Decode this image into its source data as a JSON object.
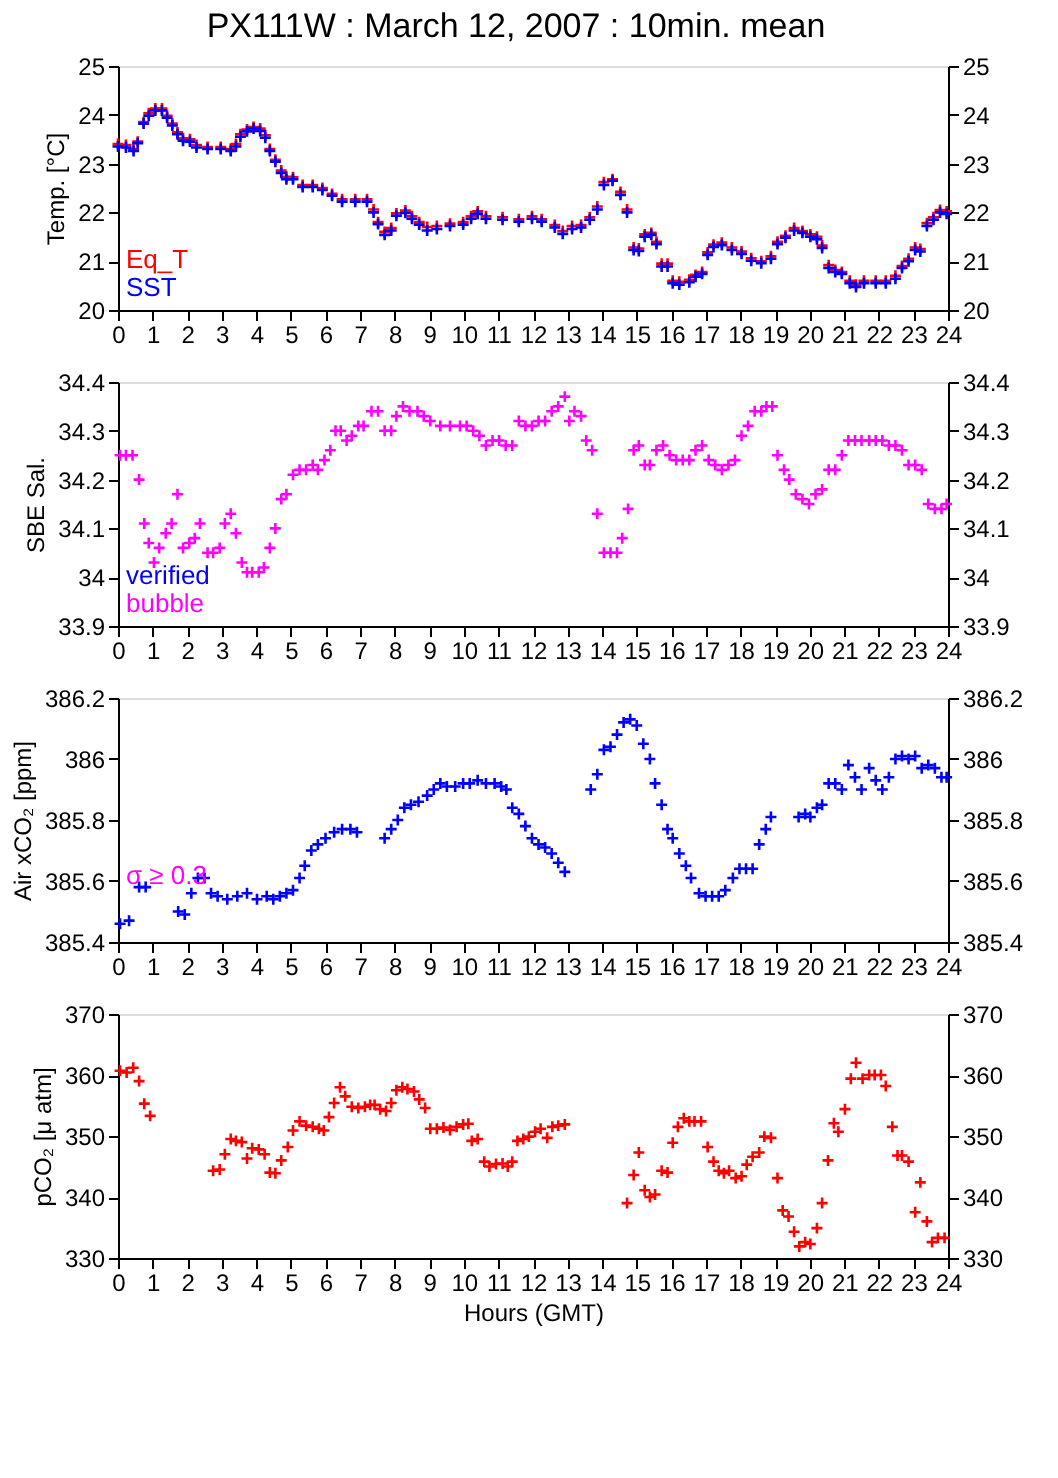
{
  "chart_data": [
    {
      "type": "scatter",
      "title": "PX111W : March 12, 2007 : 10min. mean",
      "ylabel": "Temp. [°C]",
      "xlim": [
        0,
        24
      ],
      "xticks": [
        0,
        1,
        2,
        3,
        4,
        5,
        6,
        7,
        8,
        9,
        10,
        11,
        12,
        13,
        14,
        15,
        16,
        17,
        18,
        19,
        20,
        21,
        22,
        23,
        24
      ],
      "ylim": [
        20,
        25
      ],
      "yticks": [
        20,
        21,
        22,
        23,
        24,
        25
      ],
      "y2lim": [
        20,
        25
      ],
      "y2ticks": [
        20,
        21,
        22,
        23,
        24,
        25
      ],
      "marker": "cross",
      "legend": "bottom left",
      "series": [
        {
          "name": "Eq_T",
          "color": "#ff0000",
          "x": [
            0,
            0.23,
            0.45,
            0.57,
            0.74,
            0.89,
            1.08,
            1.27,
            1.42,
            1.57,
            1.72,
            1.88,
            2.08,
            2.27,
            2.59,
            2.97,
            3.26,
            3.41,
            3.54,
            3.73,
            3.92,
            4.11,
            4.26,
            4.39,
            4.55,
            4.72,
            4.87,
            5.06,
            5.34,
            5.63,
            5.91,
            6.19,
            6.48,
            6.86,
            7.2,
            7.39,
            7.52,
            7.71,
            7.9,
            8.05,
            8.31,
            8.5,
            8.71,
            8.94,
            9.22,
            9.6,
            9.98,
            10.21,
            10.4,
            10.64,
            11.12,
            11.59,
            11.97,
            12.25,
            12.63,
            12.86,
            13.13,
            13.39,
            13.64,
            13.86,
            14.05,
            14.3,
            14.53,
            14.72,
            14.91,
            15.06,
            15.23,
            15.42,
            15.57,
            15.72,
            15.89,
            16.04,
            16.23,
            16.52,
            16.7,
            16.89,
            17.05,
            17.22,
            17.46,
            17.75,
            18.03,
            18.31,
            18.6,
            18.88,
            19.07,
            19.3,
            19.55,
            19.79,
            20.02,
            20.21,
            20.36,
            20.55,
            20.74,
            20.93,
            21.16,
            21.34,
            21.57,
            21.91,
            22.2,
            22.48,
            22.67,
            22.86,
            23.05,
            23.2,
            23.39,
            23.58,
            23.77,
            23.96
          ],
          "values": [
            23.4,
            23.38,
            23.3,
            23.45,
            23.85,
            24.03,
            24.13,
            24.13,
            23.98,
            23.82,
            23.64,
            23.52,
            23.5,
            23.38,
            23.34,
            23.34,
            23.3,
            23.4,
            23.6,
            23.7,
            23.75,
            23.72,
            23.58,
            23.3,
            23.08,
            22.86,
            22.73,
            22.72,
            22.56,
            22.56,
            22.5,
            22.38,
            22.27,
            22.27,
            22.27,
            22.06,
            21.8,
            21.6,
            21.68,
            21.98,
            22.04,
            21.92,
            21.8,
            21.7,
            21.72,
            21.77,
            21.8,
            21.92,
            22.02,
            21.92,
            21.9,
            21.86,
            21.92,
            21.86,
            21.74,
            21.62,
            21.72,
            21.74,
            21.9,
            22.12,
            22.62,
            22.68,
            22.42,
            22.06,
            21.28,
            21.26,
            21.55,
            21.58,
            21.4,
            20.95,
            20.95,
            20.6,
            20.58,
            20.62,
            20.72,
            20.78,
            21.18,
            21.34,
            21.38,
            21.28,
            21.2,
            21.06,
            21.0,
            21.1,
            21.4,
            21.52,
            21.68,
            21.62,
            21.55,
            21.5,
            21.32,
            20.92,
            20.82,
            20.78,
            20.6,
            20.52,
            20.6,
            20.6,
            20.6,
            20.7,
            20.9,
            21.05,
            21.28,
            21.25,
            21.78,
            21.9,
            22.05,
            22.02
          ]
        },
        {
          "name": "SST",
          "color": "#0000ff",
          "x": [
            0,
            0.23,
            0.45,
            0.57,
            0.74,
            0.89,
            1.08,
            1.27,
            1.42,
            1.57,
            1.72,
            1.88,
            2.08,
            2.27,
            2.59,
            2.97,
            3.26,
            3.41,
            3.54,
            3.73,
            3.92,
            4.11,
            4.26,
            4.39,
            4.55,
            4.72,
            4.87,
            5.06,
            5.34,
            5.63,
            5.91,
            6.19,
            6.48,
            6.86,
            7.2,
            7.39,
            7.52,
            7.71,
            7.9,
            8.05,
            8.31,
            8.5,
            8.71,
            8.94,
            9.22,
            9.6,
            9.98,
            10.21,
            10.4,
            10.64,
            11.12,
            11.59,
            11.97,
            12.25,
            12.63,
            12.86,
            13.13,
            13.39,
            13.64,
            13.86,
            14.05,
            14.3,
            14.53,
            14.72,
            14.91,
            15.06,
            15.23,
            15.42,
            15.57,
            15.72,
            15.89,
            16.04,
            16.23,
            16.52,
            16.7,
            16.89,
            17.05,
            17.22,
            17.46,
            17.75,
            18.03,
            18.31,
            18.6,
            18.88,
            19.07,
            19.3,
            19.55,
            19.79,
            20.02,
            20.21,
            20.36,
            20.55,
            20.74,
            20.93,
            21.16,
            21.34,
            21.57,
            21.91,
            22.2,
            22.48,
            22.67,
            22.86,
            23.05,
            23.2,
            23.39,
            23.58,
            23.77,
            23.96
          ],
          "values": [
            23.35,
            23.33,
            23.26,
            23.42,
            23.82,
            23.98,
            24.09,
            24.09,
            23.94,
            23.78,
            23.6,
            23.47,
            23.45,
            23.33,
            23.3,
            23.3,
            23.26,
            23.35,
            23.55,
            23.66,
            23.72,
            23.67,
            23.53,
            23.26,
            23.04,
            22.81,
            22.68,
            22.68,
            22.52,
            22.52,
            22.46,
            22.34,
            22.22,
            22.22,
            22.22,
            22.0,
            21.76,
            21.54,
            21.63,
            21.93,
            21.99,
            21.87,
            21.75,
            21.63,
            21.66,
            21.72,
            21.75,
            21.87,
            21.97,
            21.87,
            21.85,
            21.81,
            21.87,
            21.81,
            21.69,
            21.56,
            21.66,
            21.69,
            21.85,
            22.06,
            22.56,
            22.65,
            22.36,
            22.0,
            21.23,
            21.21,
            21.5,
            21.54,
            21.35,
            20.89,
            20.89,
            20.55,
            20.52,
            20.57,
            20.68,
            20.74,
            21.13,
            21.29,
            21.33,
            21.23,
            21.15,
            21.01,
            20.96,
            21.05,
            21.35,
            21.48,
            21.63,
            21.58,
            21.5,
            21.45,
            21.27,
            20.86,
            20.78,
            20.74,
            20.55,
            20.47,
            20.55,
            20.55,
            20.55,
            20.64,
            20.86,
            21.0,
            21.23,
            21.2,
            21.72,
            21.85,
            22.0,
            21.97
          ]
        }
      ]
    },
    {
      "type": "scatter",
      "ylabel": "SBE Sal.",
      "xlim": [
        0,
        24
      ],
      "xticks": [
        0,
        1,
        2,
        3,
        4,
        5,
        6,
        7,
        8,
        9,
        10,
        11,
        12,
        13,
        14,
        15,
        16,
        17,
        18,
        19,
        20,
        21,
        22,
        23,
        24
      ],
      "ylim": [
        33.9,
        34.4
      ],
      "yticks": [
        33.9,
        34,
        34.1,
        34.2,
        34.3,
        34.4
      ],
      "y2lim": [
        33.9,
        34.4
      ],
      "y2ticks": [
        33.9,
        34,
        34.1,
        34.2,
        34.3,
        34.4
      ],
      "marker": "cross",
      "legend": "bottom left",
      "annotations": [
        "verified"
      ],
      "series": [
        {
          "name": "bubble",
          "color": "#ff00ff",
          "x": [
            0.06,
            0.23,
            0.42,
            0.61,
            0.76,
            0.89,
            1.04,
            1.19,
            1.38,
            1.55,
            1.72,
            1.88,
            2.06,
            2.22,
            2.37,
            2.59,
            2.75,
            2.94,
            3.09,
            3.26,
            3.41,
            3.58,
            3.73,
            3.88,
            4.07,
            4.22,
            4.39,
            4.55,
            4.72,
            4.87,
            5.06,
            5.25,
            5.44,
            5.63,
            5.78,
            5.97,
            6.14,
            6.29,
            6.44,
            6.61,
            6.76,
            6.95,
            7.1,
            7.33,
            7.52,
            7.71,
            7.9,
            8.05,
            8.24,
            8.43,
            8.66,
            8.84,
            9.03,
            9.32,
            9.6,
            9.89,
            10.08,
            10.27,
            10.45,
            10.64,
            10.83,
            11.02,
            11.21,
            11.4,
            11.59,
            11.78,
            11.97,
            12.16,
            12.35,
            12.54,
            12.73,
            12.92,
            13.05,
            13.2,
            13.39,
            13.54,
            13.71,
            13.86,
            14.05,
            14.24,
            14.43,
            14.58,
            14.75,
            14.91,
            15.06,
            15.23,
            15.38,
            15.57,
            15.76,
            15.95,
            16.14,
            16.33,
            16.52,
            16.7,
            16.89,
            17.08,
            17.27,
            17.46,
            17.65,
            17.84,
            18.03,
            18.22,
            18.41,
            18.6,
            18.75,
            18.92,
            19.07,
            19.26,
            19.41,
            19.6,
            19.79,
            19.98,
            20.17,
            20.36,
            20.55,
            20.74,
            20.93,
            21.12,
            21.31,
            21.5,
            21.72,
            21.91,
            22.1,
            22.29,
            22.48,
            22.67,
            22.86,
            23.05,
            23.24,
            23.43,
            23.62,
            23.81,
            23.96
          ],
          "values": [
            34.25,
            34.25,
            34.25,
            34.2,
            34.11,
            34.07,
            34.03,
            34.06,
            34.09,
            34.11,
            34.17,
            34.06,
            34.07,
            34.08,
            34.11,
            34.05,
            34.05,
            34.06,
            34.11,
            34.13,
            34.09,
            34.03,
            34.01,
            34.01,
            34.01,
            34.02,
            34.06,
            34.1,
            34.16,
            34.17,
            34.21,
            34.22,
            34.22,
            34.23,
            34.22,
            34.24,
            34.26,
            34.3,
            34.3,
            34.28,
            34.29,
            34.31,
            34.31,
            34.34,
            34.34,
            34.3,
            34.3,
            34.33,
            34.35,
            34.34,
            34.34,
            34.33,
            34.32,
            34.31,
            34.31,
            34.31,
            34.31,
            34.3,
            34.29,
            34.27,
            34.28,
            34.28,
            34.27,
            34.27,
            34.32,
            34.31,
            34.31,
            34.32,
            34.32,
            34.34,
            34.35,
            34.37,
            34.32,
            34.34,
            34.33,
            34.28,
            34.26,
            34.13,
            34.05,
            34.05,
            34.05,
            34.08,
            34.14,
            34.26,
            34.27,
            34.23,
            34.23,
            34.26,
            34.27,
            34.25,
            34.24,
            34.24,
            34.24,
            34.26,
            34.27,
            34.24,
            34.23,
            34.22,
            34.23,
            34.24,
            34.29,
            34.31,
            34.34,
            34.34,
            34.35,
            34.35,
            34.25,
            34.22,
            34.2,
            34.17,
            34.16,
            34.15,
            34.17,
            34.18,
            34.22,
            34.22,
            34.25,
            34.28,
            34.28,
            34.28,
            34.28,
            34.28,
            34.28,
            34.27,
            34.27,
            34.26,
            34.23,
            34.23,
            34.22,
            34.15,
            34.14,
            34.14,
            34.15
          ]
        }
      ]
    },
    {
      "type": "scatter",
      "ylabel": "Air xCO₂ [ppm]",
      "xlim": [
        0,
        24
      ],
      "xticks": [
        0,
        1,
        2,
        3,
        4,
        5,
        6,
        7,
        8,
        9,
        10,
        11,
        12,
        13,
        14,
        15,
        16,
        17,
        18,
        19,
        20,
        21,
        22,
        23,
        24
      ],
      "ylim": [
        385.4,
        386.2
      ],
      "yticks": [
        385.4,
        385.6,
        385.8,
        386,
        386.2
      ],
      "y2lim": [
        385.4,
        386.2
      ],
      "y2ticks": [
        385.4,
        385.6,
        385.8,
        386,
        386.2
      ],
      "marker": "cross",
      "annotations": [
        "σ ≥ 0.3"
      ],
      "series": [
        {
          "color": "#0000ff",
          "x": [
            0.06,
            0.32,
            0.61,
            0.8,
            1.74,
            1.93,
            2.12,
            2.31,
            2.5,
            2.69,
            2.88,
            3.16,
            3.45,
            3.73,
            4.02,
            4.3,
            4.49,
            4.68,
            4.87,
            5.06,
            5.25,
            5.4,
            5.59,
            5.78,
            6.0,
            6.25,
            6.48,
            6.72,
            6.91,
            7.71,
            7.9,
            8.09,
            8.28,
            8.47,
            8.69,
            8.94,
            9.13,
            9.32,
            9.51,
            9.75,
            9.98,
            10.17,
            10.4,
            10.64,
            10.89,
            11.08,
            11.23,
            11.4,
            11.59,
            11.78,
            11.97,
            12.16,
            12.35,
            12.54,
            12.73,
            12.92,
            13.67,
            13.86,
            14.05,
            14.24,
            14.43,
            14.62,
            14.81,
            15.0,
            15.19,
            15.38,
            15.53,
            15.72,
            15.89,
            16.04,
            16.23,
            16.42,
            16.57,
            16.8,
            16.99,
            17.18,
            17.37,
            17.56,
            17.78,
            17.97,
            18.16,
            18.35,
            18.54,
            18.73,
            18.88,
            19.68,
            19.87,
            20.02,
            20.21,
            20.36,
            20.55,
            20.74,
            20.93,
            21.12,
            21.31,
            21.5,
            21.72,
            21.91,
            22.1,
            22.29,
            22.48,
            22.67,
            22.86,
            23.05,
            23.24,
            23.43,
            23.62,
            23.81,
            23.96
          ],
          "values": [
            385.46,
            385.47,
            385.58,
            385.58,
            385.5,
            385.49,
            385.56,
            385.61,
            385.61,
            385.56,
            385.55,
            385.54,
            385.55,
            385.56,
            385.54,
            385.55,
            385.54,
            385.55,
            385.56,
            385.57,
            385.61,
            385.65,
            385.7,
            385.72,
            385.74,
            385.76,
            385.77,
            385.77,
            385.76,
            385.74,
            385.77,
            385.8,
            385.84,
            385.85,
            385.86,
            385.88,
            385.9,
            385.92,
            385.91,
            385.91,
            385.92,
            385.92,
            385.93,
            385.92,
            385.92,
            385.91,
            385.9,
            385.84,
            385.82,
            385.78,
            385.74,
            385.72,
            385.71,
            385.69,
            385.66,
            385.63,
            385.9,
            385.95,
            386.03,
            386.04,
            386.08,
            386.12,
            386.13,
            386.11,
            386.05,
            386.0,
            385.92,
            385.85,
            385.77,
            385.74,
            385.69,
            385.65,
            385.61,
            385.56,
            385.55,
            385.55,
            385.55,
            385.57,
            385.61,
            385.64,
            385.64,
            385.64,
            385.72,
            385.77,
            385.81,
            385.81,
            385.82,
            385.81,
            385.84,
            385.85,
            385.92,
            385.92,
            385.9,
            385.98,
            385.94,
            385.9,
            385.97,
            385.93,
            385.9,
            385.94,
            386.0,
            386.01,
            386.0,
            386.01,
            385.97,
            385.98,
            385.97,
            385.94,
            385.94
          ]
        }
      ]
    },
    {
      "type": "scatter",
      "ylabel": "pCO₂ [μ atm]",
      "xlabel": "Hours (GMT)",
      "xlim": [
        0,
        24
      ],
      "xticks": [
        0,
        1,
        2,
        3,
        4,
        5,
        6,
        7,
        8,
        9,
        10,
        11,
        12,
        13,
        14,
        15,
        16,
        17,
        18,
        19,
        20,
        21,
        22,
        23,
        24
      ],
      "ylim": [
        330,
        370
      ],
      "yticks": [
        330,
        340,
        350,
        360,
        370
      ],
      "y2lim": [
        330,
        370
      ],
      "y2ticks": [
        330,
        340,
        350,
        360,
        370
      ],
      "marker": "cross",
      "series": [
        {
          "color": "#ff0000",
          "x": [
            0.06,
            0.25,
            0.44,
            0.61,
            0.76,
            0.93,
            2.75,
            2.94,
            3.09,
            3.26,
            3.41,
            3.58,
            3.73,
            3.88,
            4.07,
            4.24,
            4.39,
            4.55,
            4.72,
            4.91,
            5.06,
            5.25,
            5.44,
            5.63,
            5.81,
            5.95,
            6.1,
            6.25,
            6.42,
            6.57,
            6.76,
            6.95,
            7.14,
            7.29,
            7.42,
            7.58,
            7.75,
            7.9,
            8.05,
            8.22,
            8.37,
            8.56,
            8.71,
            8.88,
            9.03,
            9.22,
            9.41,
            9.6,
            9.79,
            9.98,
            10.13,
            10.23,
            10.4,
            10.59,
            10.74,
            10.93,
            11.12,
            11.27,
            11.4,
            11.55,
            11.72,
            11.88,
            12.06,
            12.22,
            12.41,
            12.56,
            12.73,
            12.92,
            14.72,
            14.91,
            15.06,
            15.23,
            15.38,
            15.53,
            15.72,
            15.89,
            16.04,
            16.19,
            16.36,
            16.52,
            16.67,
            16.86,
            17.05,
            17.22,
            17.37,
            17.52,
            17.67,
            17.86,
            18.03,
            18.18,
            18.35,
            18.54,
            18.69,
            18.88,
            19.07,
            19.22,
            19.39,
            19.55,
            19.7,
            19.87,
            20.02,
            20.21,
            20.36,
            20.53,
            20.7,
            20.83,
            21.02,
            21.19,
            21.34,
            21.53,
            21.72,
            21.88,
            22.06,
            22.2,
            22.39,
            22.54,
            22.67,
            22.86,
            23.05,
            23.2,
            23.39,
            23.54,
            23.71,
            23.9
          ],
          "values": [
            360.7,
            360.4,
            361.2,
            359.0,
            355.3,
            353.3,
            344.3,
            344.5,
            347.0,
            349.5,
            349.2,
            349.0,
            346.3,
            348.0,
            347.8,
            347.0,
            344.0,
            343.9,
            346.0,
            348.2,
            350.9,
            352.4,
            351.7,
            351.5,
            351.2,
            350.9,
            353.1,
            355.4,
            358.0,
            356.5,
            354.8,
            354.6,
            354.8,
            355.1,
            355.1,
            354.4,
            354.1,
            355.4,
            357.5,
            358.0,
            357.7,
            357.3,
            356.0,
            354.6,
            351.2,
            351.2,
            351.4,
            351.0,
            351.5,
            351.9,
            352.0,
            349.2,
            349.5,
            345.8,
            345.0,
            345.4,
            345.5,
            345.0,
            345.8,
            349.2,
            349.5,
            349.9,
            350.7,
            351.2,
            349.7,
            351.5,
            351.7,
            351.9,
            339.0,
            343.6,
            347.3,
            341.1,
            340.0,
            340.4,
            344.3,
            344.0,
            348.9,
            351.5,
            352.9,
            352.4,
            352.4,
            352.4,
            348.2,
            345.8,
            344.3,
            343.9,
            344.3,
            343.1,
            343.4,
            345.3,
            346.6,
            347.3,
            349.9,
            349.7,
            343.1,
            337.8,
            336.8,
            334.3,
            331.9,
            332.6,
            332.3,
            334.9,
            339.0,
            346.0,
            352.1,
            350.7,
            354.4,
            359.4,
            362.0,
            359.4,
            360.0,
            360.0,
            360.0,
            358.2,
            351.5,
            346.8,
            346.8,
            345.8,
            337.5,
            342.4,
            336.0,
            332.6,
            333.3,
            333.3
          ]
        }
      ]
    }
  ]
}
